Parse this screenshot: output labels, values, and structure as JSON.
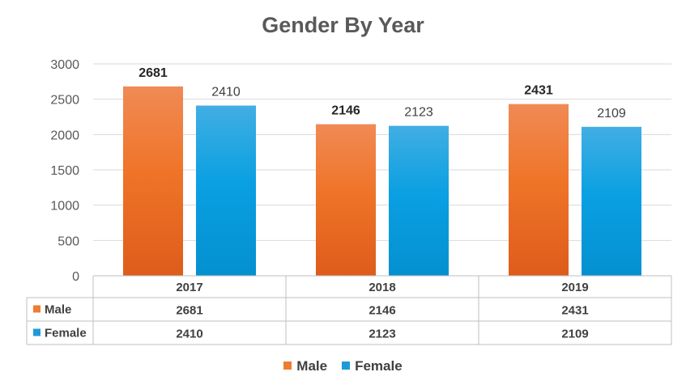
{
  "chart_data": {
    "type": "bar",
    "title": "Gender By Year",
    "categories": [
      "2017",
      "2018",
      "2019"
    ],
    "series": [
      {
        "name": "Male",
        "values": [
          2681,
          2146,
          2431
        ],
        "color": "#ED7D31"
      },
      {
        "name": "Female",
        "values": [
          2410,
          2123,
          2109
        ],
        "color": "#1E9BD7"
      }
    ],
    "ylim": [
      0,
      3000
    ],
    "yticks": [
      0,
      500,
      1000,
      1500,
      2000,
      2500,
      3000
    ],
    "grid": true,
    "legend_position": "bottom",
    "data_table": true
  }
}
